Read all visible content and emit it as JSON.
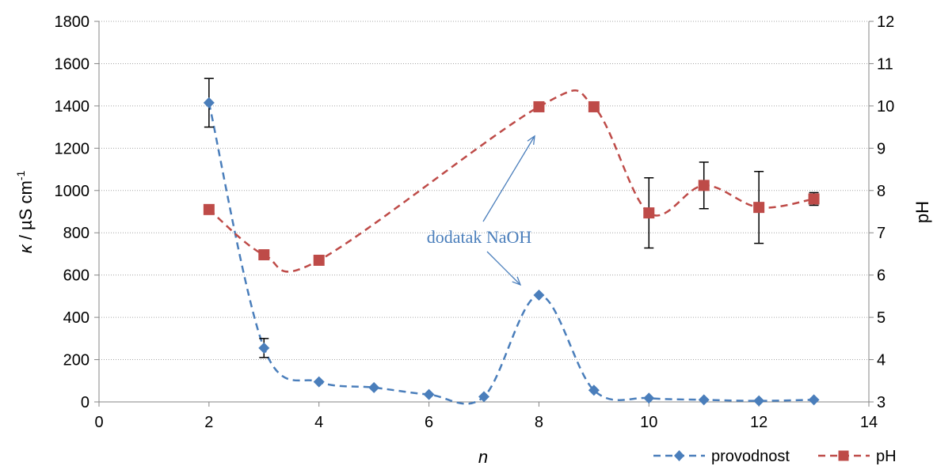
{
  "chart_data": {
    "type": "line",
    "x_axis": {
      "label": "n",
      "min": 0,
      "max": 14,
      "ticks": [
        "0",
        "2",
        "4",
        "6",
        "8",
        "10",
        "12",
        "14"
      ]
    },
    "y_axis_left": {
      "label_symbol": "κ",
      "label_rest": " / µS cm",
      "label_sup": "-1",
      "min": 0,
      "max": 1800,
      "ticks": [
        "0",
        "200",
        "400",
        "600",
        "800",
        "1000",
        "1200",
        "1400",
        "1600",
        "1800"
      ]
    },
    "y_axis_right": {
      "label": "pH",
      "min": 3,
      "max": 12,
      "ticks": [
        "3",
        "4",
        "5",
        "6",
        "7",
        "8",
        "9",
        "10",
        "11",
        "12"
      ]
    },
    "grid": "horizontal",
    "legend": {
      "placement": "bottom-right"
    },
    "series": [
      {
        "name": "provodnost",
        "axis": "left",
        "color": "#4a7ebb",
        "marker": "diamond",
        "x": [
          2,
          3,
          4,
          5,
          6,
          7,
          8,
          9,
          10,
          11,
          12,
          13
        ],
        "y": [
          1415,
          255,
          95,
          68,
          35,
          25,
          505,
          55,
          18,
          10,
          5,
          10
        ],
        "error": [
          115,
          45,
          0,
          0,
          0,
          0,
          0,
          0,
          0,
          0,
          0,
          0
        ]
      },
      {
        "name": "pH",
        "axis": "right",
        "color": "#be4b48",
        "marker": "square",
        "x": [
          2,
          3,
          4,
          8,
          9,
          10,
          11,
          12,
          13
        ],
        "y": [
          7.55,
          6.48,
          6.35,
          9.98,
          9.98,
          7.47,
          8.12,
          7.6,
          7.8
        ],
        "error": [
          0,
          0,
          0,
          0,
          0,
          0.83,
          0.55,
          0.85,
          0.15
        ]
      }
    ],
    "annotation": {
      "text": "dodatak NaOH",
      "color": "#4a7ebb"
    }
  }
}
